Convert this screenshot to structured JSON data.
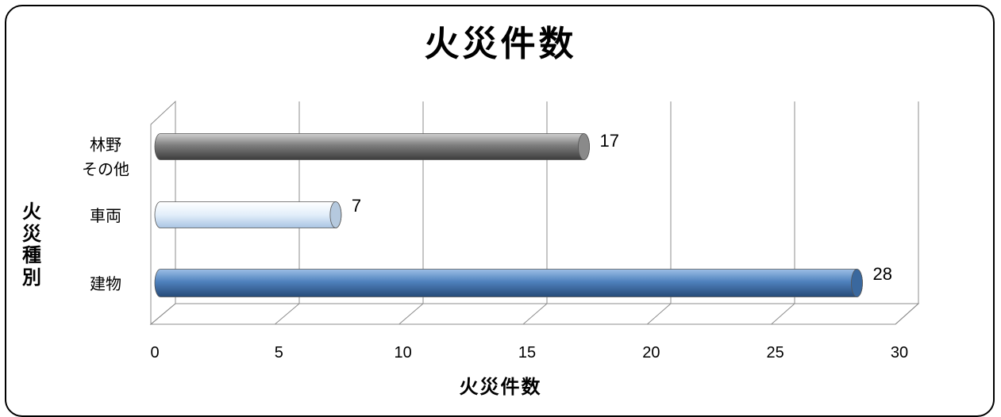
{
  "chart_data": {
    "type": "bar",
    "orientation": "horizontal",
    "title": "火災件数",
    "xlabel": "火災件数",
    "ylabel": "火災種別",
    "categories": [
      {
        "label_lines": [
          "林野",
          "その他"
        ],
        "value": 17,
        "color": "#7a7a7a"
      },
      {
        "label_lines": [
          "車両"
        ],
        "value": 7,
        "color": "#dce9f7"
      },
      {
        "label_lines": [
          "建物"
        ],
        "value": 28,
        "color": "#4f81bd"
      }
    ],
    "x_ticks": [
      "0",
      "5",
      "10",
      "15",
      "20",
      "25",
      "30"
    ],
    "xlim": [
      0,
      30
    ],
    "grid": true,
    "legend": "none"
  }
}
